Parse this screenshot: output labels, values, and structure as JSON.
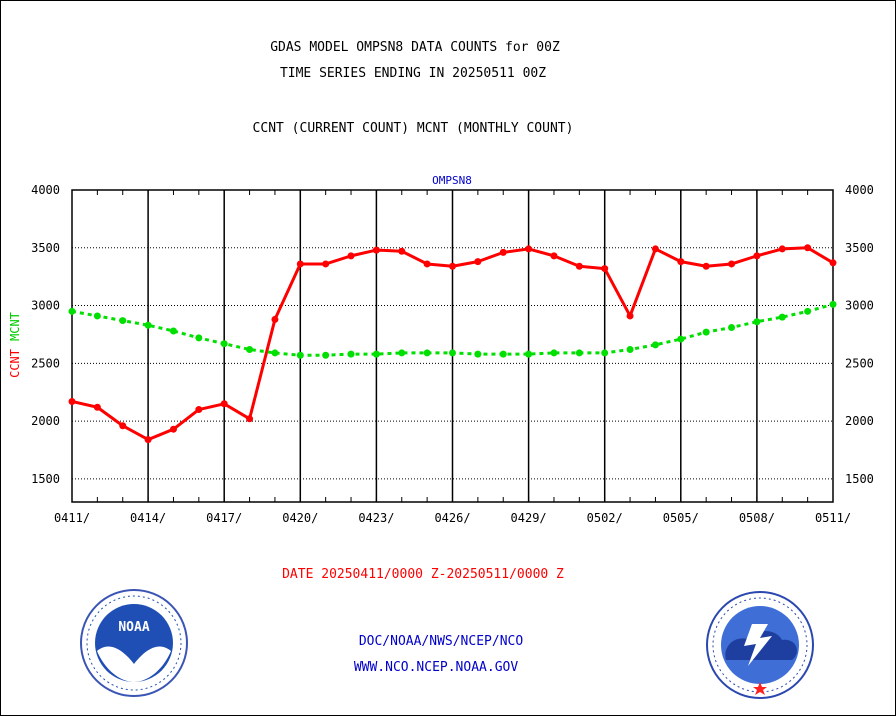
{
  "header": {
    "title_line1": "GDAS MODEL OMPSN8 DATA COUNTS for 00Z",
    "title_line2": "TIME SERIES ENDING IN 20250511 00Z",
    "subtitle": "CCNT (CURRENT COUNT) MCNT (MONTHLY COUNT)"
  },
  "chart_data": {
    "type": "line",
    "title": "OMPSN8",
    "ylabel_ccnt": "CCNT",
    "ylabel_mcnt": "MCNT",
    "xlabel": "DATE 20250411/0000 Z-20250511/0000 Z",
    "ylim": [
      1300,
      4000
    ],
    "yticks": [
      1500,
      2000,
      2500,
      3000,
      3500,
      4000
    ],
    "xtick_labels": [
      "0411/",
      "0414/",
      "0417/",
      "0420/",
      "0423/",
      "0426/",
      "0429/",
      "0502/",
      "0505/",
      "0508/",
      "0511/"
    ],
    "x": [
      "0411",
      "0412",
      "0413",
      "0414",
      "0415",
      "0416",
      "0417",
      "0418",
      "0419",
      "0420",
      "0421",
      "0422",
      "0423",
      "0424",
      "0425",
      "0426",
      "0427",
      "0428",
      "0429",
      "0430",
      "0501",
      "0502",
      "0503",
      "0504",
      "0505",
      "0506",
      "0507",
      "0508",
      "0509",
      "0510",
      "0511"
    ],
    "series": [
      {
        "name": "CCNT",
        "color": "#ff0000",
        "style": "solid",
        "values": [
          2170,
          2120,
          1960,
          1840,
          1930,
          2100,
          2150,
          2020,
          2880,
          3360,
          3360,
          3430,
          3480,
          3470,
          3360,
          3340,
          3380,
          3460,
          3490,
          3430,
          3340,
          3320,
          2910,
          3490,
          3380,
          3340,
          3360,
          3430,
          3490,
          3500,
          3370
        ]
      },
      {
        "name": "MCNT",
        "color": "#00e000",
        "style": "dashed",
        "values": [
          2950,
          2910,
          2870,
          2830,
          2780,
          2720,
          2670,
          2620,
          2590,
          2570,
          2570,
          2580,
          2580,
          2590,
          2590,
          2590,
          2580,
          2580,
          2580,
          2590,
          2590,
          2590,
          2620,
          2660,
          2710,
          2770,
          2810,
          2860,
          2900,
          2950,
          3010
        ]
      }
    ],
    "grid": true
  },
  "footer": {
    "line1": "DOC/NOAA/NWS/NCEP/NCO",
    "line2": "WWW.NCO.NCEP.NOAA.GOV",
    "noaa_logo_text": "NOAA",
    "nws_logo_text": "NATIONAL WEATHER SERVICE"
  }
}
